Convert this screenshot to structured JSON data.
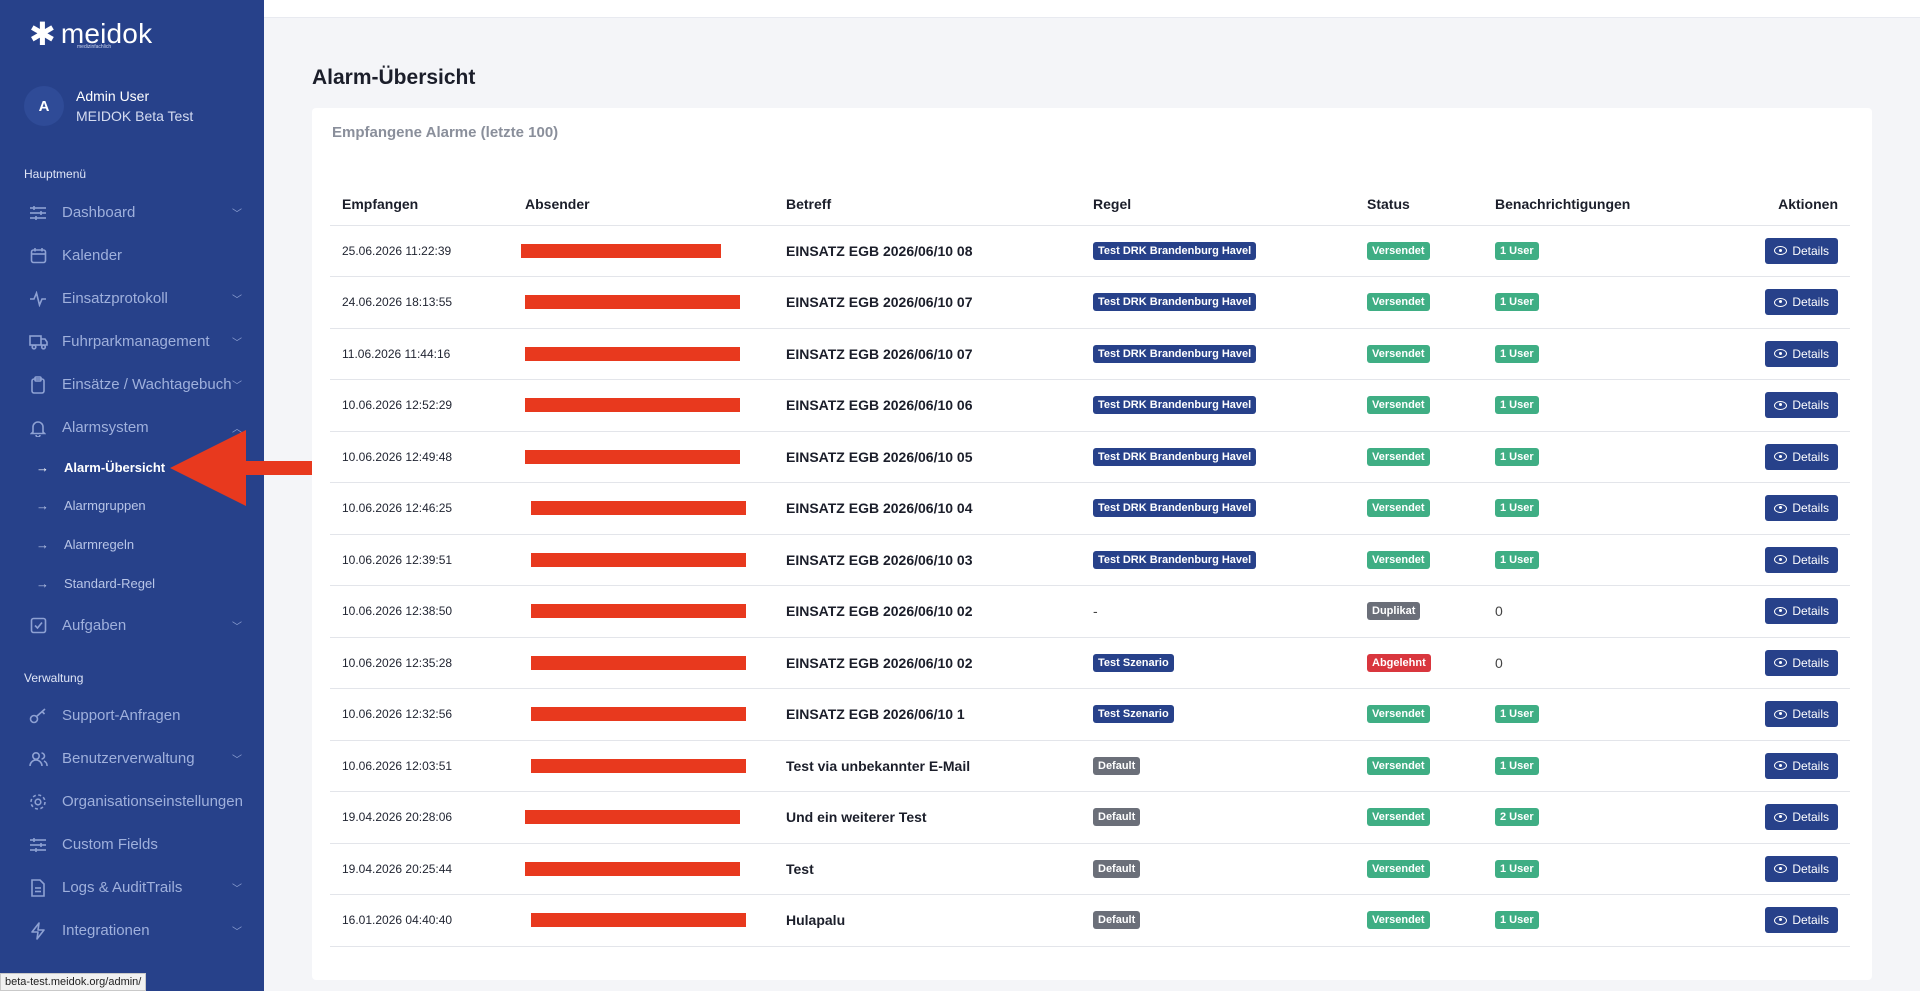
{
  "brand": {
    "name": "meidok",
    "tagline": "medizinfachlich"
  },
  "user": {
    "initial": "A",
    "name": "Admin User",
    "org": "MEIDOK Beta Test"
  },
  "sidebar": {
    "section_main": "Hauptmenü",
    "items_main": [
      {
        "label": "Dashboard",
        "icon": "sliders-icon",
        "chevron": "down"
      },
      {
        "label": "Kalender",
        "icon": "calendar-icon",
        "chevron": ""
      },
      {
        "label": "Einsatzprotokoll",
        "icon": "activity-icon",
        "chevron": "down"
      },
      {
        "label": "Fuhrparkmanagement",
        "icon": "truck-icon",
        "chevron": "down"
      },
      {
        "label": "Einsätze / Wachtagebuch",
        "icon": "clipboard-icon",
        "chevron": "down"
      },
      {
        "label": "Alarmsystem",
        "icon": "bell-icon",
        "chevron": "up"
      }
    ],
    "sub_items": [
      {
        "label": "Alarm-Übersicht",
        "active": true
      },
      {
        "label": "Alarmgruppen",
        "active": false
      },
      {
        "label": "Alarmregeln",
        "active": false
      },
      {
        "label": "Standard-Regel",
        "active": false
      }
    ],
    "item_tasks": {
      "label": "Aufgaben",
      "icon": "checkbox-icon"
    },
    "section_admin": "Verwaltung",
    "items_admin": [
      {
        "label": "Support-Anfragen",
        "icon": "key-icon",
        "chevron": ""
      },
      {
        "label": "Benutzerverwaltung",
        "icon": "users-icon",
        "chevron": "down"
      },
      {
        "label": "Organisationseinstellungen",
        "icon": "gear-icon",
        "chevron": ""
      },
      {
        "label": "Custom Fields",
        "icon": "sliders-icon",
        "chevron": ""
      },
      {
        "label": "Logs & AuditTrails",
        "icon": "document-icon",
        "chevron": "down"
      },
      {
        "label": "Integrationen",
        "icon": "bolt-icon",
        "chevron": "down"
      }
    ]
  },
  "status_url": "beta-test.meidok.org/admin/",
  "page": {
    "title": "Alarm-Übersicht",
    "card_title": "Empfangene Alarme (letzte 100)"
  },
  "table": {
    "headers": [
      "Empfangen",
      "Absender",
      "Betreff",
      "Regel",
      "Status",
      "Benachrichtigungen",
      "Aktionen"
    ],
    "action_label": "Details",
    "rows": [
      {
        "received": "25.06.2026 11:22:39",
        "subject": "EINSATZ EGB 2026/06/10 08",
        "rule": "Test DRK Brandenburg Havel",
        "rule_type": "navy",
        "status": "Versendet",
        "status_type": "green",
        "notif": "1 User",
        "notif_type": "badge"
      },
      {
        "received": "24.06.2026 18:13:55",
        "subject": "EINSATZ EGB 2026/06/10 07",
        "rule": "Test DRK Brandenburg Havel",
        "rule_type": "navy",
        "status": "Versendet",
        "status_type": "green",
        "notif": "1 User",
        "notif_type": "badge"
      },
      {
        "received": "11.06.2026 11:44:16",
        "subject": "EINSATZ EGB 2026/06/10 07",
        "rule": "Test DRK Brandenburg Havel",
        "rule_type": "navy",
        "status": "Versendet",
        "status_type": "green",
        "notif": "1 User",
        "notif_type": "badge"
      },
      {
        "received": "10.06.2026 12:52:29",
        "subject": "EINSATZ EGB 2026/06/10 06",
        "rule": "Test DRK Brandenburg Havel",
        "rule_type": "navy",
        "status": "Versendet",
        "status_type": "green",
        "notif": "1 User",
        "notif_type": "badge"
      },
      {
        "received": "10.06.2026 12:49:48",
        "subject": "EINSATZ EGB 2026/06/10 05",
        "rule": "Test DRK Brandenburg Havel",
        "rule_type": "navy",
        "status": "Versendet",
        "status_type": "green",
        "notif": "1 User",
        "notif_type": "badge"
      },
      {
        "received": "10.06.2026 12:46:25",
        "subject": "EINSATZ EGB 2026/06/10 04",
        "rule": "Test DRK Brandenburg Havel",
        "rule_type": "navy",
        "status": "Versendet",
        "status_type": "green",
        "notif": "1 User",
        "notif_type": "badge"
      },
      {
        "received": "10.06.2026 12:39:51",
        "subject": "EINSATZ EGB 2026/06/10 03",
        "rule": "Test DRK Brandenburg Havel",
        "rule_type": "navy",
        "status": "Versendet",
        "status_type": "green",
        "notif": "1 User",
        "notif_type": "badge"
      },
      {
        "received": "10.06.2026 12:38:50",
        "subject": "EINSATZ EGB 2026/06/10 02",
        "rule": "-",
        "rule_type": "plain",
        "status": "Duplikat",
        "status_type": "gray",
        "notif": "0",
        "notif_type": "plain"
      },
      {
        "received": "10.06.2026 12:35:28",
        "subject": "EINSATZ EGB 2026/06/10 02",
        "rule": "Test Szenario",
        "rule_type": "navy",
        "status": "Abgelehnt",
        "status_type": "red",
        "notif": "0",
        "notif_type": "plain"
      },
      {
        "received": "10.06.2026 12:32:56",
        "subject": "EINSATZ EGB 2026/06/10 1",
        "rule": "Test Szenario",
        "rule_type": "navy",
        "status": "Versendet",
        "status_type": "green",
        "notif": "1 User",
        "notif_type": "badge"
      },
      {
        "received": "10.06.2026 12:03:51",
        "subject": "Test via unbekannter E-Mail",
        "rule": "Default",
        "rule_type": "gray",
        "status": "Versendet",
        "status_type": "green",
        "notif": "1 User",
        "notif_type": "badge"
      },
      {
        "received": "19.04.2026 20:28:06",
        "subject": "Und ein weiterer Test",
        "rule": "Default",
        "rule_type": "gray",
        "status": "Versendet",
        "status_type": "green",
        "notif": "2 User",
        "notif_type": "badge"
      },
      {
        "received": "19.04.2026 20:25:44",
        "subject": "Test",
        "rule": "Default",
        "rule_type": "gray",
        "status": "Versendet",
        "status_type": "green",
        "notif": "1 User",
        "notif_type": "badge"
      },
      {
        "received": "16.01.2026 04:40:40",
        "subject": "Hulapalu",
        "rule": "Default",
        "rule_type": "gray",
        "status": "Versendet",
        "status_type": "green",
        "notif": "1 User",
        "notif_type": "badge"
      }
    ]
  },
  "colors": {
    "sidebar": "#27418a",
    "accent": "#27418a",
    "success": "#3fae84",
    "danger": "#d9363e",
    "muted": "#6b6f79",
    "annotation": "#e8391e"
  }
}
